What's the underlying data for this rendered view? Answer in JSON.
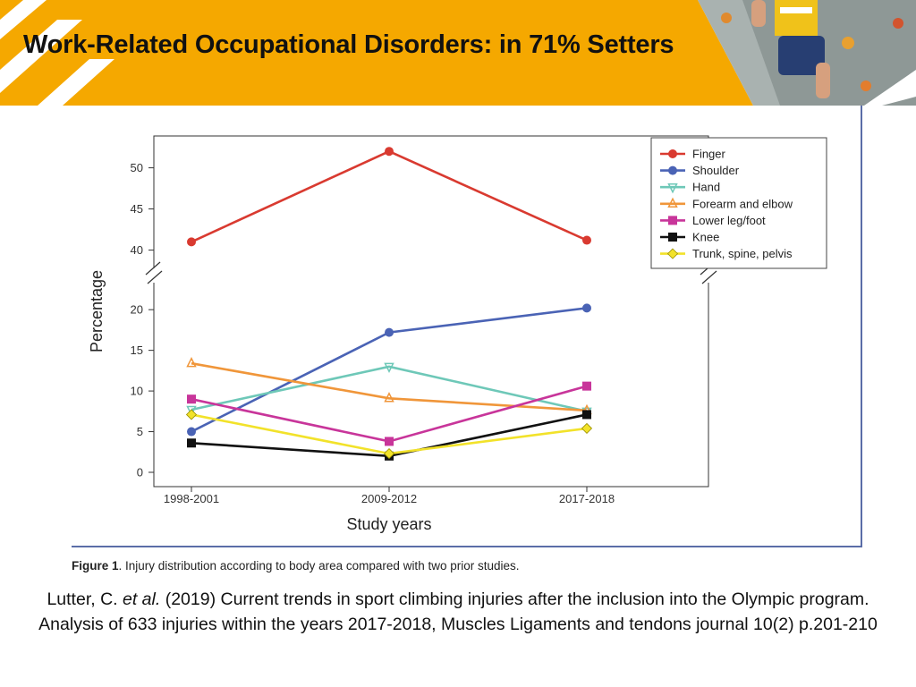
{
  "slide": {
    "title": "Work-Related Occupational Disorders: in 71% Setters",
    "caption_label": "Figure 1",
    "caption_text": ". Injury distribution according to body area compared with two prior studies.",
    "reference_authors": "Lutter, C.",
    "reference_etal": "et al.",
    "reference_rest": " (2019) Current trends in sport climbing injuries after the inclusion into the Olympic program. Analysis of 633 injuries within the years 2017-2018, Muscles Ligaments and tendons journal 10(2) p.201-210",
    "header_color": "#f5a800"
  },
  "chart_data": {
    "type": "line",
    "title": "",
    "xlabel": "Study years",
    "ylabel": "Percentage",
    "categories": [
      "1998-2001",
      "2009-2012",
      "2017-2018"
    ],
    "axis_break": {
      "lower_range": [
        0,
        22
      ],
      "upper_range": [
        38,
        53
      ]
    },
    "lower_ticks": [
      0,
      5,
      10,
      15,
      20
    ],
    "upper_ticks": [
      40,
      45,
      50
    ],
    "grid": false,
    "legend_position": "right",
    "series": [
      {
        "name": "Finger",
        "color": "#d93a30",
        "marker": "circle",
        "values": [
          41,
          52,
          41.2
        ]
      },
      {
        "name": "Shoulder",
        "color": "#4a63b5",
        "marker": "circle",
        "values": [
          5,
          17.2,
          20.2
        ]
      },
      {
        "name": "Hand",
        "color": "#6ec8b8",
        "marker": "triangle-down",
        "values": [
          7.7,
          13,
          7.5
        ]
      },
      {
        "name": "Forearm and elbow",
        "color": "#f0963a",
        "marker": "triangle-up",
        "values": [
          13.4,
          9.1,
          7.6
        ]
      },
      {
        "name": "Lower leg/foot",
        "color": "#c8359a",
        "marker": "square",
        "values": [
          9,
          3.8,
          10.6
        ]
      },
      {
        "name": "Knee",
        "color": "#111111",
        "marker": "square",
        "values": [
          3.6,
          2,
          7.1
        ]
      },
      {
        "name": "Trunk, spine, pelvis",
        "color": "#f2e22a",
        "marker": "diamond",
        "values": [
          7.1,
          2.3,
          5.4
        ]
      }
    ]
  }
}
